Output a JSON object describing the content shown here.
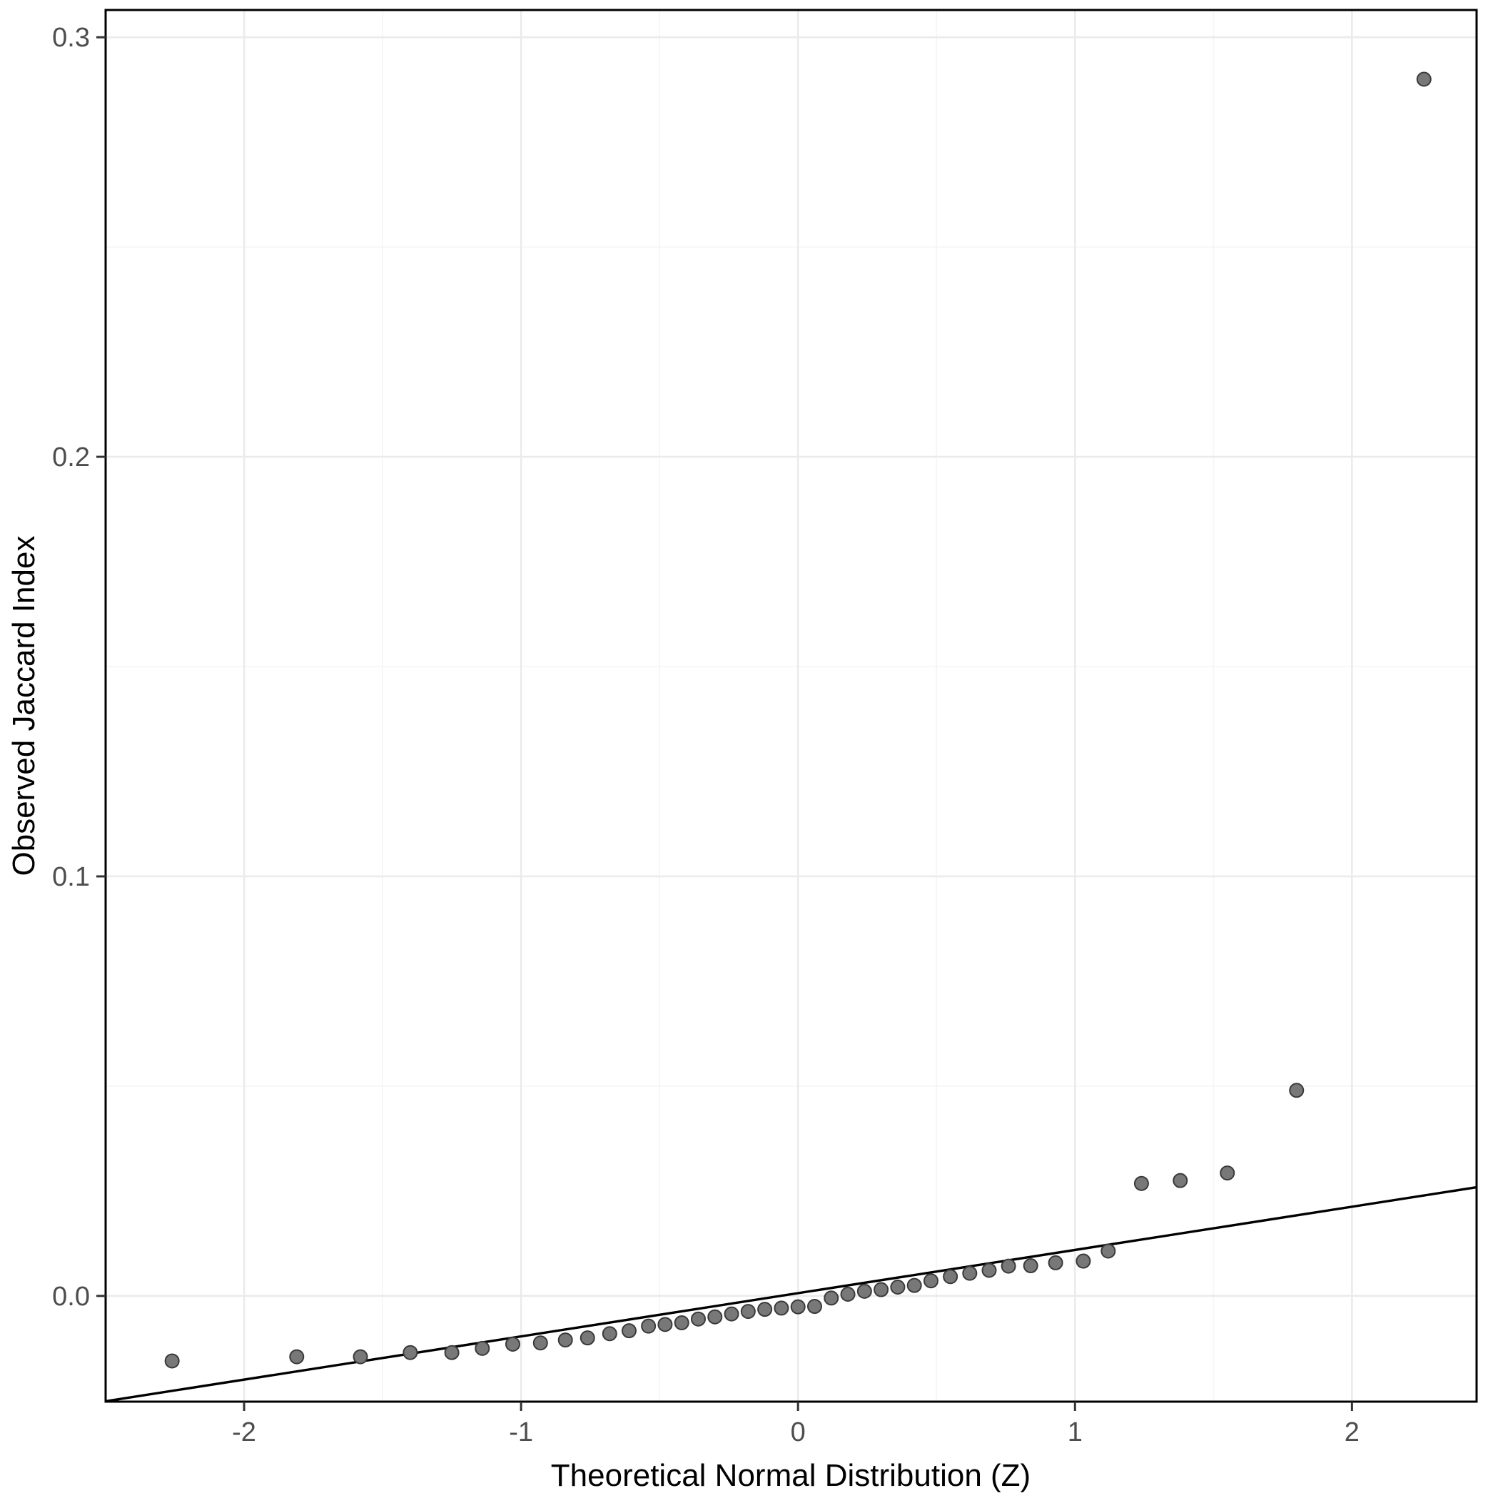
{
  "chart_data": {
    "type": "scatter",
    "title": "",
    "xlabel": "Theoretical Normal Distribution (Z)",
    "ylabel": "Observed Jaccard Index",
    "xlim": [
      -2.5,
      2.45
    ],
    "ylim": [
      -0.0252,
      0.3065
    ],
    "x_ticks": [
      -2,
      -1,
      0,
      1,
      2
    ],
    "x_tick_labels": [
      "-2",
      "-1",
      "0",
      "1",
      "2"
    ],
    "y_ticks": [
      0.0,
      0.1,
      0.2,
      0.3
    ],
    "y_tick_labels": [
      "0.0",
      "0.1",
      "0.2",
      "0.3"
    ],
    "x_minor_ticks": [
      -1.5,
      -0.5,
      0.5,
      1.5
    ],
    "y_minor_ticks": [
      0.05,
      0.15,
      0.25
    ],
    "grid": true,
    "legend": "none",
    "points": {
      "x": [
        -2.26,
        -1.81,
        -1.58,
        -1.4,
        -1.25,
        -1.14,
        -1.03,
        -0.93,
        -0.84,
        -0.76,
        -0.68,
        -0.61,
        -0.54,
        -0.48,
        -0.42,
        -0.36,
        -0.3,
        -0.24,
        -0.18,
        -0.12,
        -0.06,
        0.0,
        0.06,
        0.12,
        0.18,
        0.24,
        0.3,
        0.36,
        0.42,
        0.48,
        0.55,
        0.62,
        0.69,
        0.76,
        0.84,
        0.93,
        1.03,
        1.12,
        1.24,
        1.38,
        1.55,
        1.8,
        2.26
      ],
      "y": [
        -0.0155,
        -0.0145,
        -0.0145,
        -0.0135,
        -0.0135,
        -0.0125,
        -0.0115,
        -0.0112,
        -0.0105,
        -0.01,
        -0.009,
        -0.0083,
        -0.0072,
        -0.0068,
        -0.0064,
        -0.0055,
        -0.005,
        -0.0043,
        -0.0037,
        -0.0032,
        -0.0029,
        -0.0026,
        -0.0025,
        -0.0005,
        0.0004,
        0.0011,
        0.0015,
        0.0021,
        0.0025,
        0.0036,
        0.0046,
        0.0054,
        0.0061,
        0.0071,
        0.0072,
        0.0079,
        0.0083,
        0.0107,
        0.0268,
        0.0275,
        0.0293,
        0.049,
        0.29
      ]
    },
    "reference_line": {
      "x1": -2.5,
      "y1": -0.0251,
      "x2": 2.45,
      "y2": 0.0259
    },
    "colors": {
      "point_fill": "#787878",
      "point_stroke": "#3a3a3a",
      "line": "#000000",
      "grid_major": "#ebebeb",
      "grid_minor": "#f5f5f5",
      "panel_border": "#000000",
      "panel_background": "#ffffff",
      "tick_label": "#4d4d4d",
      "axis_title": "#000000"
    }
  }
}
